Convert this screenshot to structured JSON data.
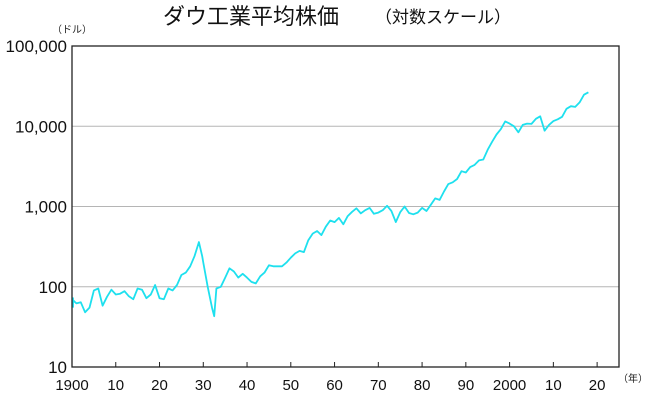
{
  "chart_data": {
    "type": "line",
    "title": "ダウ工業平均株価",
    "subtitle": "（対数スケール）",
    "y_unit": "（ドル）",
    "x_unit": "（年）",
    "y_scale": "log",
    "ylim": [
      10,
      100000
    ],
    "xlim": [
      1900,
      2025
    ],
    "grid": "horizontal",
    "line_color": "#1ee0ee",
    "y_ticks": [
      {
        "value": 10,
        "label": "10"
      },
      {
        "value": 100,
        "label": "100"
      },
      {
        "value": 1000,
        "label": "1,000"
      },
      {
        "value": 10000,
        "label": "10,000"
      },
      {
        "value": 100000,
        "label": "100,000"
      }
    ],
    "x_ticks": [
      {
        "value": 1900,
        "label": "1900"
      },
      {
        "value": 1910,
        "label": "10"
      },
      {
        "value": 1920,
        "label": "20"
      },
      {
        "value": 1930,
        "label": "30"
      },
      {
        "value": 1940,
        "label": "40"
      },
      {
        "value": 1950,
        "label": "50"
      },
      {
        "value": 1960,
        "label": "60"
      },
      {
        "value": 1970,
        "label": "70"
      },
      {
        "value": 1980,
        "label": "80"
      },
      {
        "value": 1990,
        "label": "90"
      },
      {
        "value": 2000,
        "label": "2000"
      },
      {
        "value": 2010,
        "label": "10"
      },
      {
        "value": 2020,
        "label": "20"
      }
    ],
    "x": [
      1896,
      1897,
      1898,
      1899,
      1900,
      1901,
      1902,
      1903,
      1904,
      1905,
      1906,
      1907,
      1908,
      1909,
      1910,
      1911,
      1912,
      1913,
      1914,
      1915,
      1916,
      1917,
      1918,
      1919,
      1920,
      1921,
      1922,
      1923,
      1924,
      1925,
      1926,
      1927,
      1928,
      1929,
      1929.75,
      1930,
      1931,
      1932,
      1932.5,
      1933,
      1934,
      1935,
      1936,
      1937,
      1938,
      1939,
      1940,
      1941,
      1942,
      1943,
      1944,
      1945,
      1946,
      1947,
      1948,
      1949,
      1950,
      1951,
      1952,
      1953,
      1954,
      1955,
      1956,
      1957,
      1958,
      1959,
      1960,
      1961,
      1962,
      1963,
      1964,
      1965,
      1966,
      1967,
      1968,
      1969,
      1970,
      1971,
      1972,
      1973,
      1974,
      1975,
      1976,
      1977,
      1978,
      1979,
      1980,
      1981,
      1982,
      1983,
      1984,
      1985,
      1986,
      1987,
      1988,
      1989,
      1990,
      1991,
      1992,
      1993,
      1994,
      1995,
      1996,
      1997,
      1998,
      1999,
      2000,
      2001,
      2002,
      2003,
      2004,
      2005,
      2006,
      2007,
      2008,
      2009,
      2010,
      2011,
      2012,
      2013,
      2014,
      2015,
      2016,
      2017,
      2018
    ],
    "y": [
      55,
      65,
      72,
      70,
      68,
      62,
      64,
      48,
      55,
      90,
      95,
      58,
      75,
      92,
      80,
      82,
      88,
      76,
      70,
      95,
      92,
      72,
      80,
      105,
      72,
      70,
      95,
      90,
      105,
      140,
      150,
      180,
      240,
      360,
      240,
      200,
      100,
      55,
      43,
      95,
      100,
      130,
      170,
      155,
      130,
      145,
      130,
      115,
      110,
      135,
      150,
      185,
      180,
      180,
      180,
      200,
      230,
      260,
      280,
      270,
      380,
      460,
      495,
      440,
      560,
      670,
      640,
      720,
      600,
      760,
      860,
      950,
      820,
      900,
      960,
      810,
      840,
      900,
      1020,
      880,
      640,
      850,
      1000,
      830,
      800,
      840,
      960,
      880,
      1050,
      1260,
      1210,
      1540,
      1900,
      2000,
      2200,
      2750,
      2650,
      3100,
      3300,
      3750,
      3850,
      5100,
      6400,
      7900,
      9200,
      11500,
      10800,
      10000,
      8400,
      10400,
      10800,
      10700,
      12400,
      13300,
      8800,
      10400,
      11600,
      12200,
      13100,
      16500,
      17800,
      17400,
      19800,
      24700,
      26500
    ]
  }
}
